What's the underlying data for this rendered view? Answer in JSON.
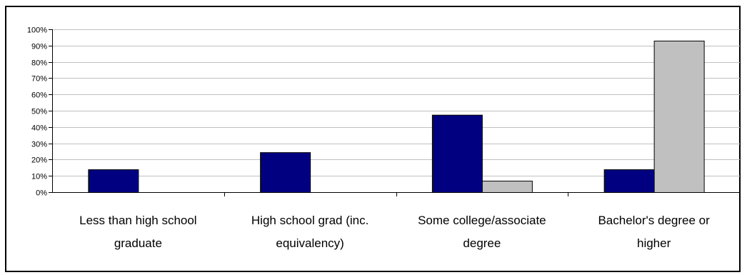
{
  "chart_data": {
    "type": "bar",
    "categories": [
      [
        "Less than high school",
        "graduate"
      ],
      [
        "High school grad (inc.",
        "equivalency)"
      ],
      [
        "Some college/associate",
        "degree"
      ],
      [
        "Bachelor's degree or",
        "higher"
      ]
    ],
    "series": [
      {
        "color": "#000080",
        "values": [
          14,
          24.5,
          47.5,
          14
        ]
      },
      {
        "color": "#C0C0C0",
        "values": [
          0,
          0,
          7,
          93
        ]
      }
    ],
    "ylim": [
      0,
      100
    ],
    "yticks": [
      0,
      10,
      20,
      30,
      40,
      50,
      60,
      70,
      80,
      90,
      100
    ],
    "ytick_labels": [
      "0%",
      "10%",
      "20%",
      "30%",
      "40%",
      "50%",
      "60%",
      "70%",
      "80%",
      "90%",
      "100%"
    ],
    "grid": true,
    "legend": "none"
  }
}
